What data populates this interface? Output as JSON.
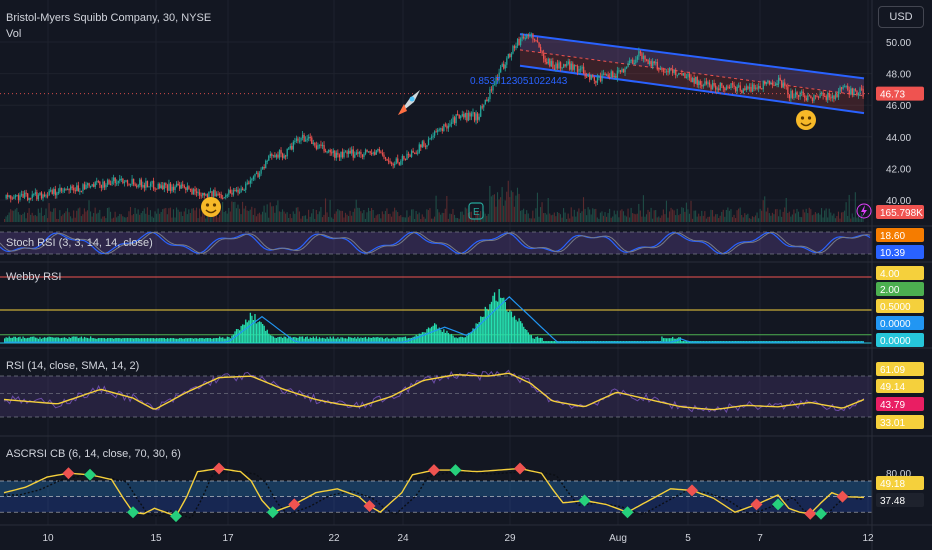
{
  "header": {
    "symbol_title": "Bristol-Myers Squibb Company, 30, NYSE",
    "volume_label": "Vol",
    "currency_button": "USD"
  },
  "main_pane": {
    "price_ticks": [
      "50.00",
      "48.00",
      "46.00",
      "44.00",
      "42.00",
      "40.00"
    ],
    "last_price": "46.73",
    "volume_value": "165.798K",
    "channel_label": "0.8537123051022443",
    "earnings_marker": "E"
  },
  "indicators": {
    "stoch_rsi": {
      "title": "Stoch RSI (3, 3, 14, 14, close)",
      "values": [
        "18.60",
        "10.39"
      ]
    },
    "webby_rsi": {
      "title": "Webby RSI",
      "values": [
        "4.00",
        "2.00",
        "0.5000",
        "0.0000",
        "0.0000"
      ]
    },
    "rsi": {
      "title": "RSI (14, close, SMA, 14, 2)",
      "values": [
        "61.09",
        "49.14",
        "43.79",
        "33.01"
      ]
    },
    "ascrsi": {
      "title": "ASCRSI CB (6, 14, close, 70, 30, 6)",
      "values": [
        "80.00",
        "49.18",
        "37.48"
      ]
    }
  },
  "x_axis": {
    "ticks": [
      "10",
      "15",
      "17",
      "22",
      "24",
      "29",
      "Aug",
      "5",
      "7",
      "12"
    ]
  },
  "colors": {
    "background": "#131722",
    "up": "#26a69a",
    "down": "#ef5350",
    "channel": "#2962ff",
    "yellow": "#f5d03c",
    "purple": "#7e57c2"
  },
  "chart_data": [
    {
      "type": "candlestick",
      "title": "Bristol-Myers Squibb Company, 30, NYSE",
      "ylim": [
        39.5,
        51.5
      ],
      "y_ticks": [
        40,
        42,
        44,
        46,
        48,
        50
      ],
      "x_ticks": [
        "10",
        "15",
        "17",
        "22",
        "24",
        "29",
        "Aug",
        "5",
        "7",
        "12"
      ],
      "last_price": 46.73,
      "close_path": [
        [
          0,
          40.1
        ],
        [
          3,
          40.3
        ],
        [
          6,
          40.6
        ],
        [
          9,
          41.0
        ],
        [
          11,
          41.3
        ],
        [
          13,
          41.0
        ],
        [
          16,
          40.8
        ],
        [
          18,
          40.5
        ],
        [
          20,
          40.3
        ],
        [
          22,
          40.7
        ],
        [
          24,
          42.0
        ],
        [
          25,
          43.0
        ],
        [
          26,
          42.8
        ],
        [
          27,
          43.6
        ],
        [
          28,
          44.0
        ],
        [
          29,
          43.4
        ],
        [
          31,
          42.8
        ],
        [
          33,
          43.0
        ],
        [
          35,
          43.0
        ],
        [
          36,
          42.2
        ],
        [
          37,
          42.6
        ],
        [
          39,
          43.5
        ],
        [
          40,
          44.1
        ],
        [
          41,
          44.7
        ],
        [
          42,
          45.2
        ],
        [
          43,
          45.3
        ],
        [
          44,
          45.3
        ],
        [
          46,
          48.0
        ],
        [
          47,
          49.3
        ],
        [
          48,
          50.2
        ],
        [
          49,
          50.5
        ],
        [
          50,
          49.2
        ],
        [
          51,
          48.5
        ],
        [
          53,
          48.5
        ],
        [
          55,
          47.6
        ],
        [
          57,
          48.0
        ],
        [
          59,
          49.2
        ],
        [
          61,
          48.3
        ],
        [
          63,
          48.0
        ],
        [
          65,
          47.3
        ],
        [
          67,
          47.2
        ],
        [
          69,
          47.0
        ],
        [
          70,
          47.2
        ],
        [
          72,
          47.6
        ],
        [
          73,
          46.7
        ],
        [
          75,
          46.5
        ],
        [
          77,
          46.6
        ],
        [
          78,
          47.0
        ],
        [
          80,
          46.73
        ]
      ],
      "regression_channel": {
        "label": "0.8537123051022443",
        "start_x": 48,
        "end_x": 80,
        "upper": [
          50.5,
          47.7
        ],
        "lower": [
          48.5,
          45.5
        ]
      },
      "volume_last": "165.798K"
    },
    {
      "type": "line",
      "title": "Stoch RSI (3, 3, 14, 14, close)",
      "ylim": [
        0,
        100
      ],
      "last_values": [
        18.6,
        10.39
      ]
    },
    {
      "type": "bar",
      "title": "Webby RSI",
      "ylim": [
        0,
        4.5
      ],
      "levels": [
        4.0,
        2.0,
        0.5,
        0.0
      ],
      "bursts": [
        {
          "center": 23,
          "height": 2.0,
          "width": 2.5
        },
        {
          "center": 40,
          "height": 1.2,
          "width": 3.0
        },
        {
          "center": 46,
          "height": 3.5,
          "width": 3.5
        },
        {
          "center": 62,
          "height": 0.3,
          "width": 0.8
        }
      ]
    },
    {
      "type": "line",
      "title": "RSI (14, close, SMA, 14, 2)",
      "ylim": [
        20,
        80
      ],
      "levels": [
        61.09,
        49.14,
        33.01
      ],
      "last_value": 43.79
    },
    {
      "type": "line",
      "title": "ASCRSI CB (6, 14, close, 70, 30, 6)",
      "ylim": [
        20,
        95
      ],
      "levels": [
        70,
        50,
        30
      ],
      "last_values": [
        49.18,
        37.48
      ],
      "axis_tick": 80.0
    }
  ]
}
